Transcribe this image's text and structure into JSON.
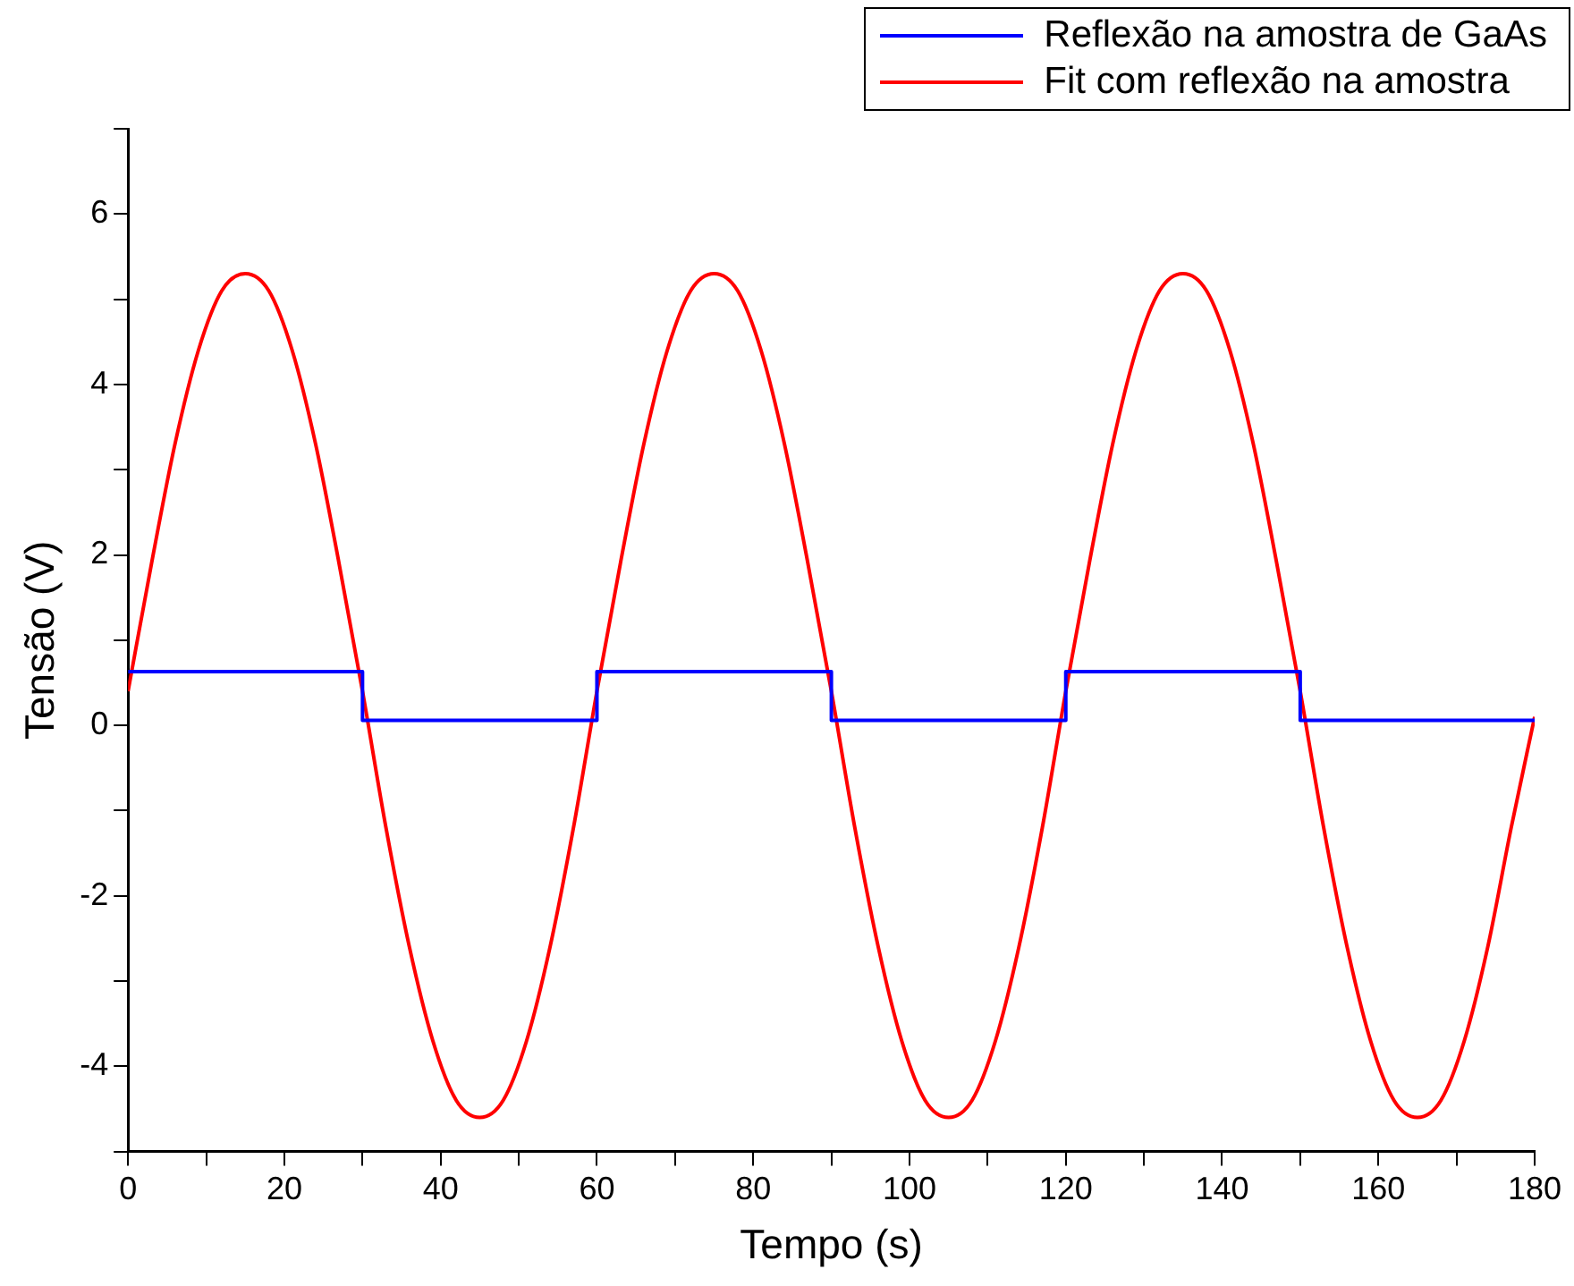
{
  "chart_data": {
    "type": "line",
    "xlabel": "Tempo (s)",
    "ylabel": "Tensão (V)",
    "xlim": [
      0,
      180
    ],
    "ylim": [
      -5,
      7
    ],
    "xticks": [
      0,
      {
        "value": 10,
        "label": null
      },
      20,
      {
        "value": 30,
        "label": null
      },
      40,
      {
        "value": 50,
        "label": null
      },
      60,
      {
        "value": 70,
        "label": null
      },
      80,
      {
        "value": 90,
        "label": null
      },
      100,
      {
        "value": 110,
        "label": null
      },
      120,
      {
        "value": 130,
        "label": null
      },
      140,
      {
        "value": 150,
        "label": null
      },
      160,
      {
        "value": 170,
        "label": null
      },
      180
    ],
    "yticks": [
      {
        "value": -5,
        "label": null
      },
      -4,
      {
        "value": -3,
        "label": null
      },
      -2,
      {
        "value": -1,
        "label": null
      },
      0,
      {
        "value": 1,
        "label": null
      },
      2,
      {
        "value": 3,
        "label": null
      },
      4,
      {
        "value": 5,
        "label": null
      },
      6,
      {
        "value": 7,
        "label": null
      }
    ],
    "grid": false,
    "legend": "top right",
    "marker": "none",
    "line_style": "solid",
    "series": [
      {
        "name": "Reflexão na amostra de GaAs",
        "color": "#0000ff",
        "x": [
          0,
          30,
          30,
          60,
          60,
          90,
          90,
          120,
          120,
          150,
          150,
          180
        ],
        "values": [
          0.63,
          0.63,
          0.06,
          0.06,
          0.63,
          0.63,
          0.06,
          0.06,
          0.63,
          0.63,
          0.06,
          0.06
        ]
      },
      {
        "name": "Fit com reflexão na amostra",
        "color": "#ff0000",
        "x": [
          0,
          3,
          6,
          9,
          12,
          15,
          18,
          21,
          24,
          27,
          30,
          33,
          36,
          39,
          42,
          45,
          48,
          51,
          54,
          57,
          60,
          63,
          66,
          69,
          72,
          75,
          78,
          81,
          84,
          87,
          90,
          93,
          96,
          99,
          102,
          105,
          108,
          111,
          114,
          117,
          120,
          123,
          126,
          129,
          132,
          135,
          138,
          141,
          144,
          147,
          150,
          153,
          156,
          159,
          162,
          165,
          168,
          171,
          174,
          177,
          180
        ],
        "values": [
          0.4,
          1.9,
          3.3,
          4.4,
          5.1,
          5.3,
          5.1,
          4.4,
          3.3,
          1.9,
          0.4,
          -1.2,
          -2.6,
          -3.7,
          -4.4,
          -4.6,
          -4.4,
          -3.7,
          -2.6,
          -1.2,
          0.4,
          1.9,
          3.3,
          4.4,
          5.1,
          5.3,
          5.1,
          4.4,
          3.3,
          1.9,
          0.4,
          -1.2,
          -2.6,
          -3.7,
          -4.4,
          -4.6,
          -4.4,
          -3.7,
          -2.6,
          -1.2,
          0.4,
          1.9,
          3.3,
          4.4,
          5.1,
          5.3,
          5.1,
          4.4,
          3.3,
          1.9,
          0.4,
          -1.2,
          -2.6,
          -3.7,
          -4.4,
          -4.6,
          -4.4,
          -3.7,
          -2.6,
          -1.2,
          0.1
        ]
      }
    ]
  }
}
